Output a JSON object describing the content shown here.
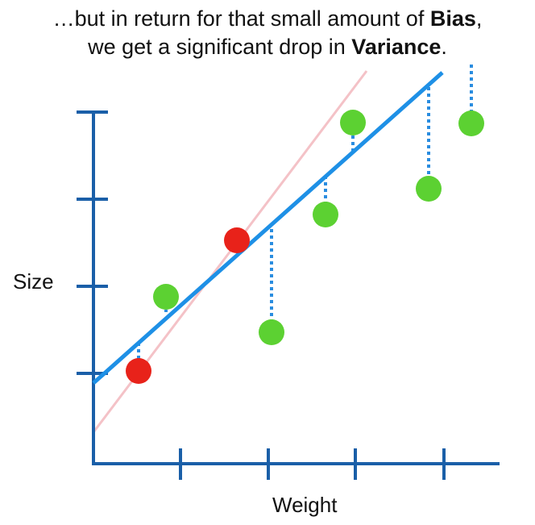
{
  "caption": {
    "line1_prefix": "…but in return for that small amount of ",
    "line1_bold": "Bias",
    "line1_suffix": ",",
    "line2_prefix": "we get a significant drop in ",
    "line2_bold": "Variance",
    "line2_suffix": "."
  },
  "axes": {
    "ylabel": "Size",
    "xlabel": "Weight"
  },
  "colors": {
    "axis": "#1a5fa8",
    "fit_line": "#1e90e6",
    "faint_line": "#f4c2c7",
    "residual": "#2a8de0",
    "training_point": "#e8221a",
    "testing_point": "#5cd132"
  }
}
